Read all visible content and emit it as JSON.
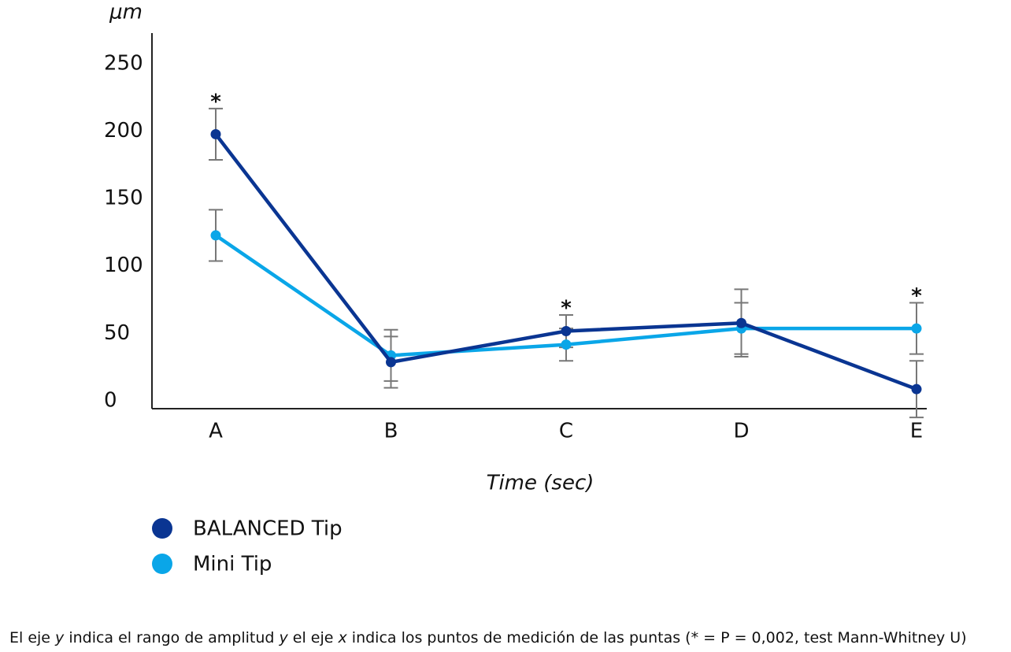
{
  "chart_data": {
    "type": "line",
    "y_label": "μm",
    "x_label": "Time (sec)",
    "categories": [
      "A",
      "B",
      "C",
      "D",
      "E"
    ],
    "ylim": [
      -3.5,
      275
    ],
    "yticks": [
      0,
      50,
      100,
      150,
      200,
      250
    ],
    "grid": false,
    "error_color": "#777777",
    "series": [
      {
        "name": "BALANCED Tip",
        "color": "#0a3592",
        "values": [
          200,
          31,
          54,
          60,
          11
        ],
        "errors": [
          19,
          19,
          12,
          25,
          21
        ]
      },
      {
        "name": "Mini Tip",
        "color": "#0aa6e8",
        "values": [
          125,
          36,
          44,
          56,
          56
        ],
        "errors": [
          19,
          19,
          12,
          19,
          19
        ]
      }
    ],
    "annotations": [
      {
        "text": "*",
        "category": 0
      },
      {
        "text": "*",
        "category": 2
      },
      {
        "text": "*",
        "category": 4
      }
    ],
    "caption": [
      {
        "text": "El eje ",
        "italic": false
      },
      {
        "text": "y",
        "italic": true
      },
      {
        "text": " indica el rango de amplitud ",
        "italic": false
      },
      {
        "text": "y",
        "italic": true
      },
      {
        "text": " el eje ",
        "italic": false
      },
      {
        "text": "x",
        "italic": true
      },
      {
        "text": " indica los puntos de medición de las puntas (* = P = 0,002, test Mann-Whitney U)",
        "italic": false
      }
    ]
  }
}
